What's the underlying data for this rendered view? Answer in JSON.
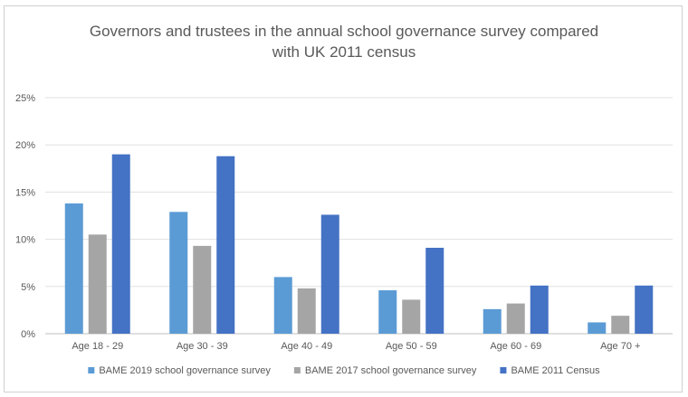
{
  "chart_data": {
    "type": "bar",
    "title_lines": [
      "Governors and trustees in the annual school governance survey compared",
      "with UK 2011 census"
    ],
    "categories": [
      "Age 18 - 29",
      "Age 30 - 39",
      "Age 40 - 49",
      "Age 50 - 59",
      "Age 60 - 69",
      "Age 70 +"
    ],
    "series": [
      {
        "name": "BAME 2019 school governance survey",
        "color": "#5b9bd5",
        "values": [
          13.8,
          12.9,
          6.0,
          4.6,
          2.6,
          1.2
        ]
      },
      {
        "name": "BAME 2017 school governance survey",
        "color": "#a5a5a5",
        "values": [
          10.5,
          9.3,
          4.8,
          3.6,
          3.2,
          1.9
        ]
      },
      {
        "name": "BAME 2011 Census",
        "color": "#4472c4",
        "values": [
          19.0,
          18.8,
          12.6,
          9.1,
          5.1,
          5.1
        ]
      }
    ],
    "y_ticks": [
      "0%",
      "5%",
      "10%",
      "15%",
      "20%",
      "25%"
    ],
    "ylim": [
      0,
      25
    ],
    "xlabel": "",
    "ylabel": "",
    "grid": true,
    "legend_position": "bottom"
  }
}
